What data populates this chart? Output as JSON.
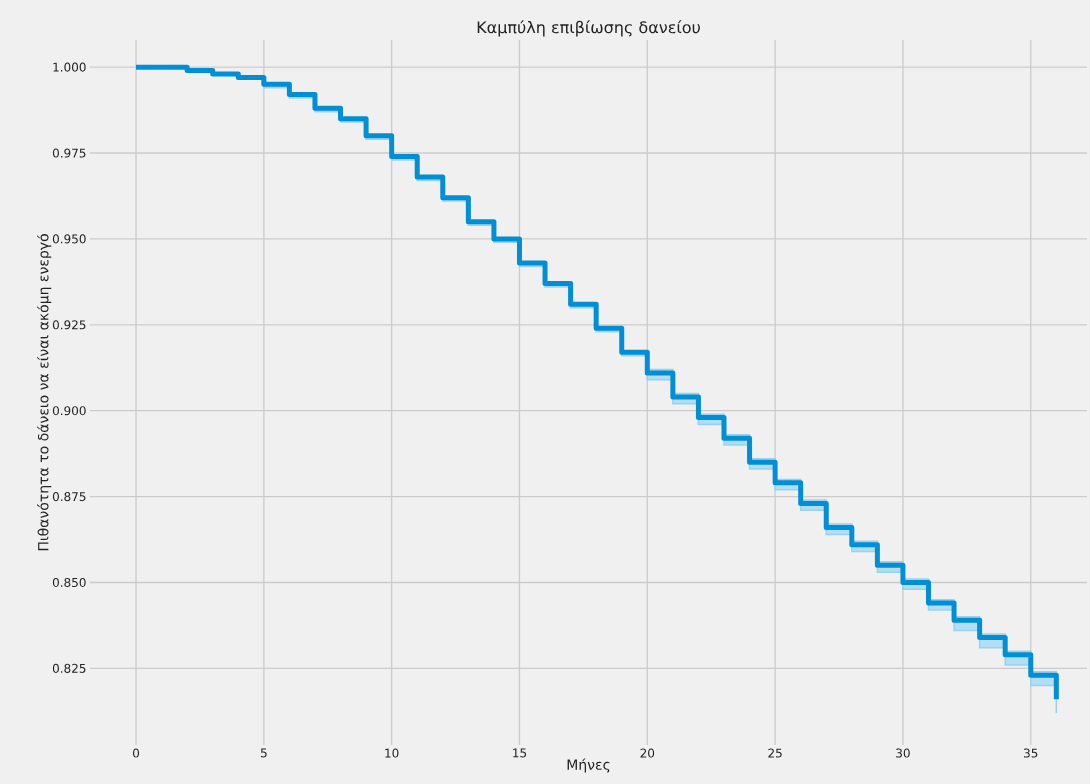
{
  "chart_data": {
    "type": "step",
    "title": "Καμπύλη επιβίωσης δανείου",
    "xlabel": "Μήνες",
    "ylabel": "Πιθανότητα το δάνειο να είναι ακόμη ενεργό",
    "x": [
      0,
      1,
      2,
      3,
      4,
      5,
      6,
      7,
      8,
      9,
      10,
      11,
      12,
      13,
      14,
      15,
      16,
      17,
      18,
      19,
      20,
      21,
      22,
      23,
      24,
      25,
      26,
      27,
      28,
      29,
      30,
      31,
      32,
      33,
      34,
      35,
      36
    ],
    "series": [
      {
        "color": "#008fd5",
        "values": [
          1.0,
          1.0,
          0.999,
          0.998,
          0.997,
          0.995,
          0.992,
          0.988,
          0.985,
          0.98,
          0.974,
          0.968,
          0.962,
          0.955,
          0.95,
          0.943,
          0.937,
          0.931,
          0.924,
          0.917,
          0.911,
          0.904,
          0.898,
          0.892,
          0.885,
          0.879,
          0.873,
          0.866,
          0.861,
          0.855,
          0.85,
          0.844,
          0.839,
          0.834,
          0.829,
          0.823,
          0.816
        ],
        "lower": [
          1.0,
          1.0,
          0.999,
          0.998,
          0.997,
          0.994,
          0.991,
          0.987,
          0.984,
          0.979,
          0.973,
          0.967,
          0.961,
          0.954,
          0.949,
          0.942,
          0.936,
          0.93,
          0.923,
          0.916,
          0.909,
          0.902,
          0.896,
          0.89,
          0.883,
          0.877,
          0.871,
          0.864,
          0.859,
          0.853,
          0.848,
          0.842,
          0.836,
          0.831,
          0.826,
          0.82,
          0.812
        ],
        "upper": [
          1.0,
          1.0,
          0.999,
          0.998,
          0.997,
          0.995,
          0.992,
          0.988,
          0.985,
          0.98,
          0.974,
          0.968,
          0.962,
          0.955,
          0.95,
          0.943,
          0.937,
          0.931,
          0.924,
          0.917,
          0.912,
          0.905,
          0.899,
          0.893,
          0.886,
          0.88,
          0.874,
          0.867,
          0.862,
          0.856,
          0.851,
          0.845,
          0.84,
          0.835,
          0.83,
          0.824,
          0.824
        ]
      }
    ],
    "xlim": [
      -1.8,
      37.2
    ],
    "ylim": [
      0.8027,
      1.0079
    ],
    "xticks": [
      0,
      5,
      10,
      15,
      20,
      25,
      30,
      35
    ],
    "yticks": [
      {
        "value": 0.825,
        "label": "0.825"
      },
      {
        "value": 0.85,
        "label": "0.850"
      },
      {
        "value": 0.875,
        "label": "0.875"
      },
      {
        "value": 0.9,
        "label": "0.900"
      },
      {
        "value": 0.925,
        "label": "0.925"
      },
      {
        "value": 0.95,
        "label": "0.950"
      },
      {
        "value": 0.975,
        "label": "0.975"
      },
      {
        "value": 1.0,
        "label": "1.000"
      }
    ],
    "grid": true
  }
}
